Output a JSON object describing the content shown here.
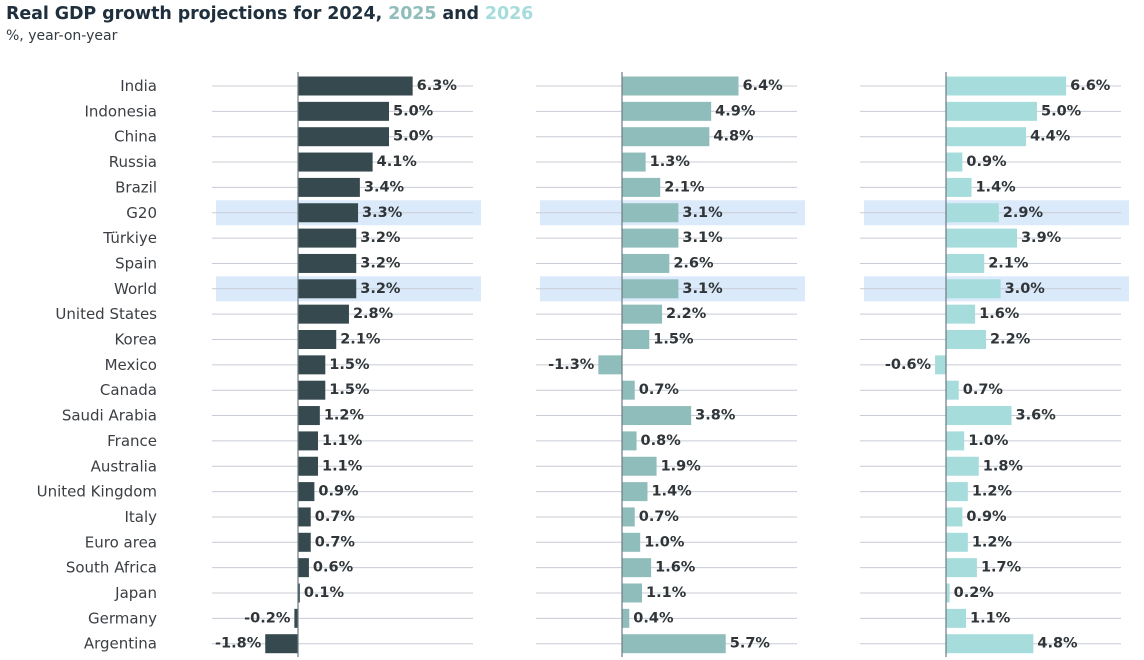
{
  "header": {
    "title_prefix": "Real GDP growth projections for ",
    "year1": "2024",
    "sep1": ", ",
    "year2": "2025",
    "sep2": " and ",
    "year3": "2026",
    "subtitle": "%, year-on-year"
  },
  "chart_data": {
    "type": "bar",
    "orientation": "horizontal",
    "title": "Real GDP growth projections for 2024, 2025 and 2026",
    "subtitle": "%, year-on-year",
    "unit": "%",
    "categories": [
      "India",
      "Indonesia",
      "China",
      "Russia",
      "Brazil",
      "G20",
      "Türkiye",
      "Spain",
      "World",
      "United States",
      "Korea",
      "Mexico",
      "Canada",
      "Saudi Arabia",
      "France",
      "Australia",
      "United Kingdom",
      "Italy",
      "Euro area",
      "South Africa",
      "Japan",
      "Germany",
      "Argentina"
    ],
    "highlighted_categories": [
      "G20",
      "World"
    ],
    "series": [
      {
        "name": "2024",
        "color": "#36494e",
        "values": [
          6.3,
          5.0,
          5.0,
          4.1,
          3.4,
          3.3,
          3.2,
          3.2,
          3.2,
          2.8,
          2.1,
          1.5,
          1.5,
          1.2,
          1.1,
          1.1,
          0.9,
          0.7,
          0.7,
          0.6,
          0.1,
          -0.2,
          -1.8
        ]
      },
      {
        "name": "2025",
        "color": "#8fbdbb",
        "values": [
          6.4,
          4.9,
          4.8,
          1.3,
          2.1,
          3.1,
          3.1,
          2.6,
          3.1,
          2.2,
          1.5,
          -1.3,
          0.7,
          3.8,
          0.8,
          1.9,
          1.4,
          0.7,
          1.0,
          1.6,
          1.1,
          0.4,
          5.7
        ]
      },
      {
        "name": "2026",
        "color": "#a6dcdb",
        "values": [
          6.6,
          5.0,
          4.4,
          0.9,
          1.4,
          2.9,
          3.9,
          2.1,
          3.0,
          1.6,
          2.2,
          -0.6,
          0.7,
          3.6,
          1.0,
          1.8,
          1.2,
          0.9,
          1.2,
          1.7,
          0.2,
          1.1,
          4.8
        ]
      }
    ],
    "colors": {
      "highlight_band": "#dbeafa",
      "row_line": "#c8ccd6",
      "zero_line": "#6b7b82",
      "label_text": "#3b3f44",
      "value_text": "#2f3538"
    },
    "grid": false,
    "legend": "none"
  }
}
